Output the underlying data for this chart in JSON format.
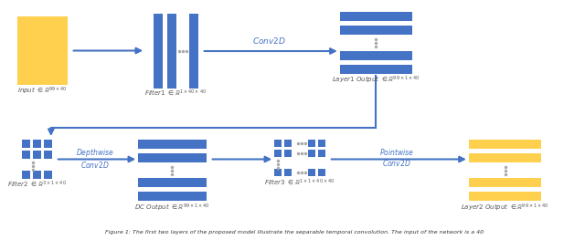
{
  "blue": "#4472C4",
  "yellow": "#FFD04E",
  "gray": "#AAAAAA",
  "arrow_color": "#4472C4",
  "bg": "#FFFFFF",
  "caption": "Figure 1: The first two layers of the proposed model illustrate the separable temporal convolution. The input of the network is a 40",
  "label_color": "#555555",
  "op_label_color": "#4472C4",
  "fig_w": 6.4,
  "fig_h": 2.63,
  "dpi": 100
}
